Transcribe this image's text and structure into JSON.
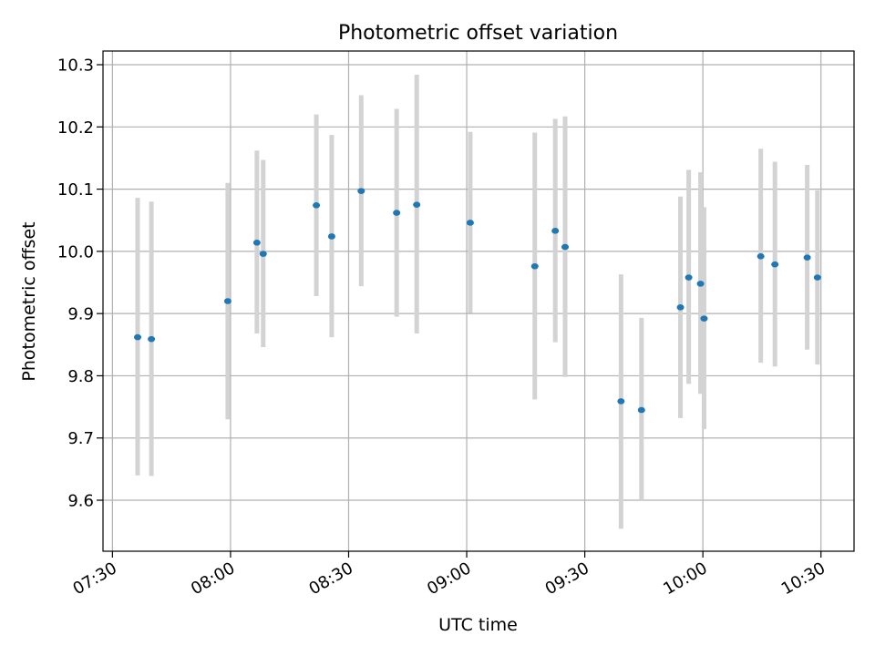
{
  "chart_data": {
    "type": "scatter",
    "title": "Photometric offset variation",
    "xlabel": "UTC time",
    "ylabel": "Photometric offset",
    "x_ticks": [
      "07:30",
      "08:00",
      "08:30",
      "09:00",
      "09:30",
      "10:00",
      "10:30"
    ],
    "x_tick_minutes": [
      450,
      480,
      510,
      540,
      570,
      600,
      630
    ],
    "y_ticks": [
      "9.6",
      "9.7",
      "9.8",
      "9.9",
      "10.0",
      "10.1",
      "10.2",
      "10.3"
    ],
    "xlim": [
      "07:27.6",
      "10:38.4"
    ],
    "ylim": [
      9.518,
      10.322
    ],
    "grid": true,
    "marker_color": "#1f77b4",
    "errorbar_color": "#d3d3d3",
    "points": [
      {
        "time": "07:36.4",
        "y": 9.862,
        "low": 9.64,
        "high": 10.086
      },
      {
        "time": "07:39.9",
        "y": 9.859,
        "low": 9.639,
        "high": 10.08
      },
      {
        "time": "07:59.3",
        "y": 9.92,
        "low": 9.73,
        "high": 10.11
      },
      {
        "time": "08:06.7",
        "y": 10.014,
        "low": 9.868,
        "high": 10.162
      },
      {
        "time": "08:08.3",
        "y": 9.996,
        "low": 9.846,
        "high": 10.147
      },
      {
        "time": "08:21.8",
        "y": 10.074,
        "low": 9.928,
        "high": 10.22
      },
      {
        "time": "08:25.7",
        "y": 10.024,
        "low": 9.862,
        "high": 10.187
      },
      {
        "time": "08:33.2",
        "y": 10.097,
        "low": 9.944,
        "high": 10.251
      },
      {
        "time": "08:42.2",
        "y": 10.062,
        "low": 9.895,
        "high": 10.229
      },
      {
        "time": "08:47.3",
        "y": 10.075,
        "low": 9.868,
        "high": 10.284
      },
      {
        "time": "09:00.9",
        "y": 10.046,
        "low": 9.901,
        "high": 10.192
      },
      {
        "time": "09:17.3",
        "y": 9.976,
        "low": 9.762,
        "high": 10.191
      },
      {
        "time": "09:22.5",
        "y": 10.033,
        "low": 9.854,
        "high": 10.213
      },
      {
        "time": "09:25.0",
        "y": 10.007,
        "low": 9.798,
        "high": 10.217
      },
      {
        "time": "09:39.2",
        "y": 9.759,
        "low": 9.554,
        "high": 9.963
      },
      {
        "time": "09:44.4",
        "y": 9.745,
        "low": 9.6,
        "high": 9.893
      },
      {
        "time": "09:54.3",
        "y": 9.91,
        "low": 9.732,
        "high": 10.088
      },
      {
        "time": "09:56.4",
        "y": 9.958,
        "low": 9.787,
        "high": 10.131
      },
      {
        "time": "09:59.4",
        "y": 9.948,
        "low": 9.771,
        "high": 10.127
      },
      {
        "time": "10:00.3",
        "y": 9.892,
        "low": 9.714,
        "high": 10.071
      },
      {
        "time": "10:14.7",
        "y": 9.992,
        "low": 9.821,
        "high": 10.165
      },
      {
        "time": "10:18.3",
        "y": 9.979,
        "low": 9.815,
        "high": 10.144
      },
      {
        "time": "10:26.5",
        "y": 9.99,
        "low": 9.842,
        "high": 10.139
      },
      {
        "time": "10:29.1",
        "y": 9.958,
        "low": 9.818,
        "high": 10.098
      }
    ]
  }
}
